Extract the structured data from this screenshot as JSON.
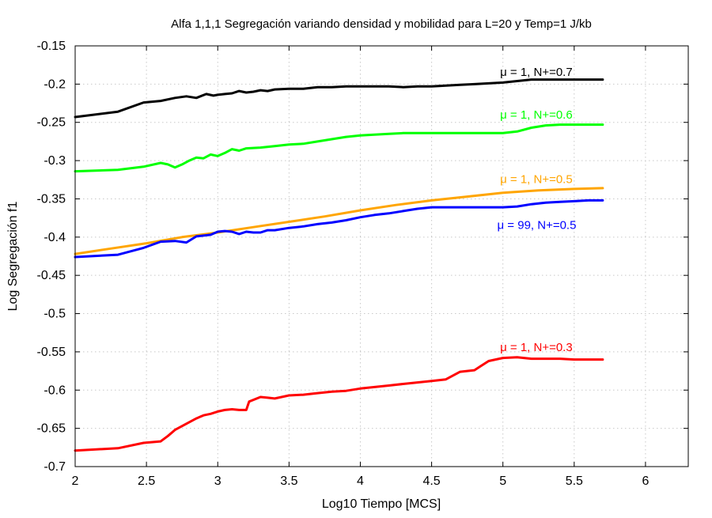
{
  "chart_data": {
    "type": "line",
    "title": "Alfa 1,1,1 Segregación variando densidad y mobilidad para L=20 y Temp=1 J/kb",
    "xlabel": "Log10 Tiempo [MCS]",
    "ylabel": "Log Segregación f1",
    "xlim": [
      2,
      6.3
    ],
    "ylim": [
      -0.7,
      -0.15
    ],
    "xticks": [
      "2",
      "2.5",
      "3",
      "3.5",
      "4",
      "4.5",
      "5",
      "5.5",
      "6"
    ],
    "yticks": [
      "-0.15",
      "-0.2",
      "-0.25",
      "-0.3",
      "-0.35",
      "-0.4",
      "-0.45",
      "-0.5",
      "-0.55",
      "-0.6",
      "-0.65",
      "-0.7"
    ],
    "grid": true,
    "legend": "inline labels near line ends",
    "series": [
      {
        "name": "μ = 1, N+=0.7",
        "color": "#000000",
        "points": [
          [
            2.0,
            -0.243
          ],
          [
            2.3,
            -0.236
          ],
          [
            2.48,
            -0.224
          ],
          [
            2.6,
            -0.222
          ],
          [
            2.7,
            -0.218
          ],
          [
            2.78,
            -0.216
          ],
          [
            2.85,
            -0.218
          ],
          [
            2.92,
            -0.213
          ],
          [
            2.97,
            -0.215
          ],
          [
            3.0,
            -0.214
          ],
          [
            3.05,
            -0.213
          ],
          [
            3.1,
            -0.212
          ],
          [
            3.15,
            -0.209
          ],
          [
            3.2,
            -0.211
          ],
          [
            3.25,
            -0.21
          ],
          [
            3.3,
            -0.208
          ],
          [
            3.35,
            -0.209
          ],
          [
            3.4,
            -0.207
          ],
          [
            3.5,
            -0.206
          ],
          [
            3.6,
            -0.206
          ],
          [
            3.7,
            -0.204
          ],
          [
            3.8,
            -0.204
          ],
          [
            3.9,
            -0.203
          ],
          [
            4.0,
            -0.203
          ],
          [
            4.1,
            -0.203
          ],
          [
            4.2,
            -0.203
          ],
          [
            4.3,
            -0.204
          ],
          [
            4.4,
            -0.203
          ],
          [
            4.5,
            -0.203
          ],
          [
            4.6,
            -0.202
          ],
          [
            4.7,
            -0.201
          ],
          [
            4.8,
            -0.2
          ],
          [
            4.9,
            -0.199
          ],
          [
            5.0,
            -0.198
          ],
          [
            5.1,
            -0.196
          ],
          [
            5.2,
            -0.194
          ],
          [
            5.3,
            -0.194
          ],
          [
            5.4,
            -0.194
          ],
          [
            5.5,
            -0.194
          ],
          [
            5.6,
            -0.194
          ],
          [
            5.7,
            -0.194
          ]
        ]
      },
      {
        "name": "μ = 1, N+=0.6",
        "color": "#00ff00",
        "points": [
          [
            2.0,
            -0.314
          ],
          [
            2.3,
            -0.312
          ],
          [
            2.48,
            -0.308
          ],
          [
            2.6,
            -0.303
          ],
          [
            2.65,
            -0.305
          ],
          [
            2.7,
            -0.309
          ],
          [
            2.75,
            -0.305
          ],
          [
            2.8,
            -0.3
          ],
          [
            2.85,
            -0.296
          ],
          [
            2.9,
            -0.297
          ],
          [
            2.95,
            -0.292
          ],
          [
            3.0,
            -0.294
          ],
          [
            3.05,
            -0.29
          ],
          [
            3.1,
            -0.285
          ],
          [
            3.15,
            -0.287
          ],
          [
            3.2,
            -0.284
          ],
          [
            3.3,
            -0.283
          ],
          [
            3.4,
            -0.281
          ],
          [
            3.5,
            -0.279
          ],
          [
            3.6,
            -0.278
          ],
          [
            3.7,
            -0.275
          ],
          [
            3.8,
            -0.272
          ],
          [
            3.9,
            -0.269
          ],
          [
            4.0,
            -0.267
          ],
          [
            4.1,
            -0.266
          ],
          [
            4.2,
            -0.265
          ],
          [
            4.3,
            -0.264
          ],
          [
            4.4,
            -0.264
          ],
          [
            4.5,
            -0.264
          ],
          [
            4.6,
            -0.264
          ],
          [
            4.7,
            -0.264
          ],
          [
            4.8,
            -0.264
          ],
          [
            4.9,
            -0.264
          ],
          [
            5.0,
            -0.264
          ],
          [
            5.1,
            -0.262
          ],
          [
            5.2,
            -0.257
          ],
          [
            5.3,
            -0.254
          ],
          [
            5.4,
            -0.253
          ],
          [
            5.5,
            -0.253
          ],
          [
            5.6,
            -0.253
          ],
          [
            5.7,
            -0.253
          ]
        ]
      },
      {
        "name": "μ = 1, N+=0.5",
        "color": "#ffa500",
        "points": [
          [
            2.0,
            -0.422
          ],
          [
            2.25,
            -0.415
          ],
          [
            2.5,
            -0.408
          ],
          [
            2.75,
            -0.4
          ],
          [
            3.0,
            -0.394
          ],
          [
            3.25,
            -0.387
          ],
          [
            3.5,
            -0.38
          ],
          [
            3.75,
            -0.373
          ],
          [
            4.0,
            -0.365
          ],
          [
            4.25,
            -0.358
          ],
          [
            4.5,
            -0.352
          ],
          [
            4.75,
            -0.347
          ],
          [
            5.0,
            -0.342
          ],
          [
            5.25,
            -0.339
          ],
          [
            5.5,
            -0.337
          ],
          [
            5.7,
            -0.336
          ]
        ]
      },
      {
        "name": "μ = 99, N+=0.5",
        "color": "#0000ff",
        "points": [
          [
            2.0,
            -0.426
          ],
          [
            2.3,
            -0.423
          ],
          [
            2.48,
            -0.414
          ],
          [
            2.6,
            -0.406
          ],
          [
            2.7,
            -0.405
          ],
          [
            2.78,
            -0.407
          ],
          [
            2.85,
            -0.399
          ],
          [
            2.95,
            -0.397
          ],
          [
            3.0,
            -0.393
          ],
          [
            3.05,
            -0.392
          ],
          [
            3.1,
            -0.393
          ],
          [
            3.15,
            -0.396
          ],
          [
            3.2,
            -0.393
          ],
          [
            3.25,
            -0.394
          ],
          [
            3.3,
            -0.394
          ],
          [
            3.35,
            -0.391
          ],
          [
            3.4,
            -0.391
          ],
          [
            3.5,
            -0.388
          ],
          [
            3.6,
            -0.386
          ],
          [
            3.7,
            -0.383
          ],
          [
            3.8,
            -0.381
          ],
          [
            3.9,
            -0.378
          ],
          [
            4.0,
            -0.374
          ],
          [
            4.1,
            -0.371
          ],
          [
            4.2,
            -0.369
          ],
          [
            4.3,
            -0.366
          ],
          [
            4.4,
            -0.363
          ],
          [
            4.5,
            -0.361
          ],
          [
            4.6,
            -0.361
          ],
          [
            4.7,
            -0.361
          ],
          [
            4.8,
            -0.361
          ],
          [
            4.9,
            -0.361
          ],
          [
            5.0,
            -0.361
          ],
          [
            5.1,
            -0.36
          ],
          [
            5.2,
            -0.357
          ],
          [
            5.3,
            -0.355
          ],
          [
            5.4,
            -0.354
          ],
          [
            5.5,
            -0.353
          ],
          [
            5.6,
            -0.352
          ],
          [
            5.7,
            -0.352
          ]
        ]
      },
      {
        "name": "μ = 1, N+=0.3",
        "color": "#ff0000",
        "points": [
          [
            2.0,
            -0.679
          ],
          [
            2.3,
            -0.676
          ],
          [
            2.48,
            -0.669
          ],
          [
            2.6,
            -0.667
          ],
          [
            2.65,
            -0.66
          ],
          [
            2.7,
            -0.652
          ],
          [
            2.78,
            -0.644
          ],
          [
            2.85,
            -0.637
          ],
          [
            2.9,
            -0.633
          ],
          [
            2.95,
            -0.631
          ],
          [
            3.0,
            -0.628
          ],
          [
            3.05,
            -0.626
          ],
          [
            3.1,
            -0.625
          ],
          [
            3.15,
            -0.626
          ],
          [
            3.2,
            -0.626
          ],
          [
            3.22,
            -0.615
          ],
          [
            3.3,
            -0.609
          ],
          [
            3.35,
            -0.61
          ],
          [
            3.4,
            -0.611
          ],
          [
            3.5,
            -0.607
          ],
          [
            3.6,
            -0.606
          ],
          [
            3.7,
            -0.604
          ],
          [
            3.8,
            -0.602
          ],
          [
            3.9,
            -0.601
          ],
          [
            4.0,
            -0.598
          ],
          [
            4.1,
            -0.596
          ],
          [
            4.2,
            -0.594
          ],
          [
            4.3,
            -0.592
          ],
          [
            4.4,
            -0.59
          ],
          [
            4.5,
            -0.588
          ],
          [
            4.6,
            -0.586
          ],
          [
            4.7,
            -0.576
          ],
          [
            4.8,
            -0.574
          ],
          [
            4.85,
            -0.568
          ],
          [
            4.9,
            -0.562
          ],
          [
            5.0,
            -0.558
          ],
          [
            5.1,
            -0.557
          ],
          [
            5.2,
            -0.559
          ],
          [
            5.3,
            -0.559
          ],
          [
            5.4,
            -0.559
          ],
          [
            5.5,
            -0.56
          ],
          [
            5.6,
            -0.56
          ],
          [
            5.7,
            -0.56
          ]
        ]
      }
    ],
    "annotations": [
      {
        "text": "μ = 1, N+=0.7",
        "x": 4.98,
        "y": -0.184,
        "color": "#000000"
      },
      {
        "text": "μ = 1, N+=0.6",
        "x": 4.98,
        "y": -0.24,
        "color": "#00ff00"
      },
      {
        "text": "μ = 1, N+=0.5",
        "x": 4.98,
        "y": -0.324,
        "color": "#ffa500"
      },
      {
        "text": "μ = 99, N+=0.5",
        "x": 4.96,
        "y": -0.384,
        "color": "#0000ff"
      },
      {
        "text": "μ = 1, N+=0.3",
        "x": 4.98,
        "y": -0.544,
        "color": "#ff0000"
      }
    ]
  }
}
